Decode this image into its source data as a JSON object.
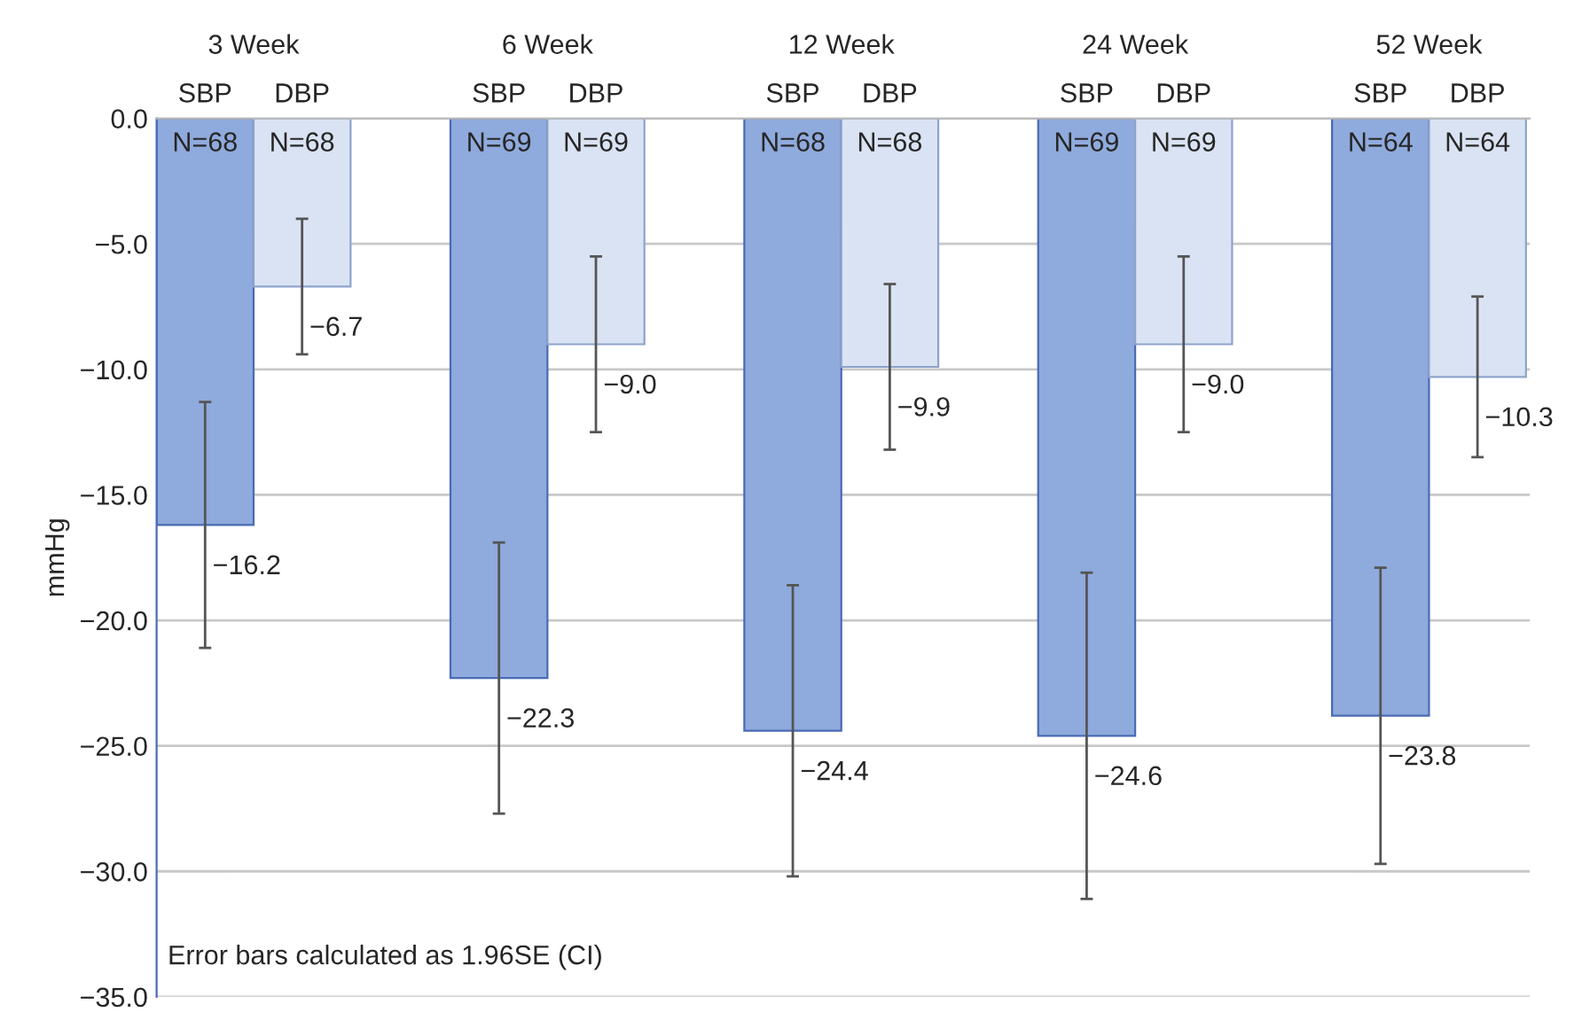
{
  "chart_data": {
    "type": "bar",
    "ylabel": "mmHg",
    "categories": [
      "3 Week",
      "6 Week",
      "12 Week",
      "24 Week",
      "52 Week"
    ],
    "series": [
      {
        "name": "SBP",
        "color": "#8faadc",
        "values": [
          -16.2,
          -22.3,
          -24.4,
          -24.6,
          -23.8
        ],
        "errors": [
          4.9,
          5.4,
          5.8,
          6.5,
          5.9
        ],
        "value_labels": [
          "−16.2",
          "−22.3",
          "−24.4",
          "−24.6",
          "−23.8"
        ]
      },
      {
        "name": "DBP",
        "color": "#dae3f3",
        "values": [
          -6.7,
          -9.0,
          -9.9,
          -9.0,
          -10.3
        ],
        "errors": [
          2.7,
          3.5,
          3.3,
          3.5,
          3.2
        ],
        "value_labels": [
          "−6.7",
          "−9.0",
          "−9.9",
          "−9.0",
          "−10.3"
        ]
      }
    ],
    "ylim": [
      -35,
      0
    ],
    "yticks": [
      {
        "value": 0,
        "label": "0.0"
      },
      {
        "value": -5,
        "label": "−5.0"
      },
      {
        "value": -10,
        "label": "−10.0"
      },
      {
        "value": -15,
        "label": "−15.0"
      },
      {
        "value": -20,
        "label": "−20.0"
      },
      {
        "value": -25,
        "label": "−25.0"
      },
      {
        "value": -30,
        "label": "−30.0"
      },
      {
        "value": -35,
        "label": "−35.0"
      }
    ],
    "grid": "y",
    "legend": false,
    "annotations": [
      "N=68",
      "N=68",
      "N=69",
      "N=69",
      "N=68",
      "N=68",
      "N=69",
      "N=69",
      "N=64",
      "N=64",
      "Error bars calculated as 1.96SE (CI)"
    ]
  }
}
